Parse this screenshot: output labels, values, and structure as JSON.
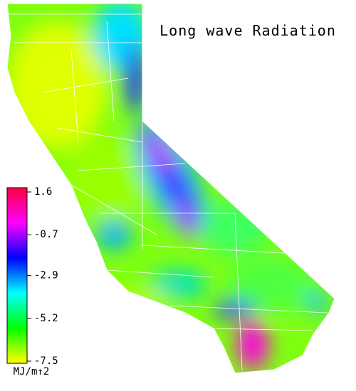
{
  "title": "Long wave Radiation",
  "colorbar": {
    "label": "MJ/m↑2",
    "range": [
      -7.5,
      1.6
    ],
    "ticks": [
      1.6,
      -0.7,
      -2.9,
      -5.2,
      -7.5
    ],
    "colors": [
      "#ffff00",
      "#00ff00",
      "#00ffff",
      "#0000ff",
      "#ff00ff",
      "#ff0040"
    ]
  }
}
